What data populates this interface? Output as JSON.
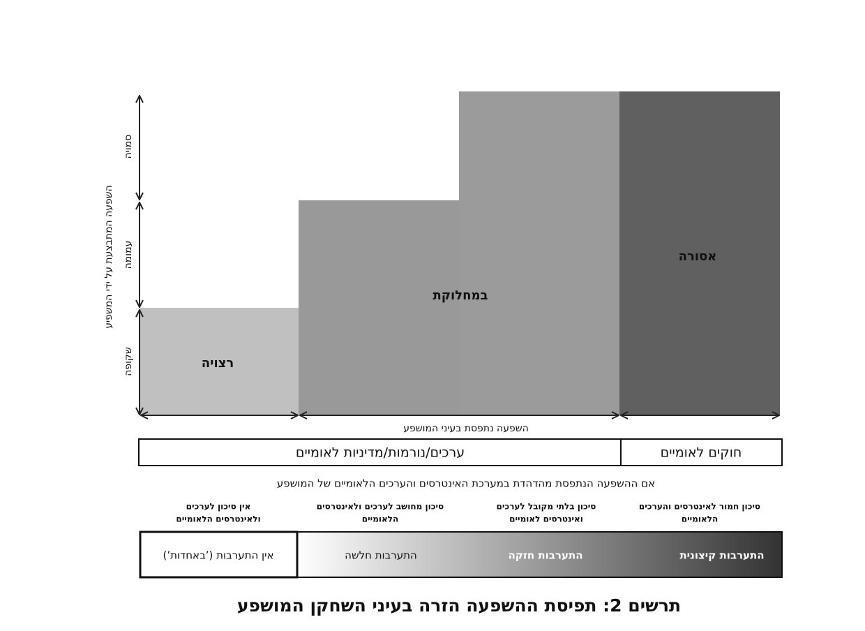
{
  "y_axis": {
    "title": "השפעה המתבצעת על ידי המשפיע",
    "levels": [
      "שקופה",
      "עמומה",
      "סמויה"
    ]
  },
  "blocks": [
    "רצויה",
    "במחלוקת",
    "אסורה"
  ],
  "x_axis": {
    "label": "השפעה נתפסת בעיני המושפע"
  },
  "categories": [
    "ערכים/נורמות/מדיניות לאומיים",
    "חוקים לאומיים"
  ],
  "condition": "אם ההשפעה הנתפסת מהדהדת במערכת האינטרסים והערכים הלאומיים של המושפע",
  "risks": [
    {
      "lines": [
        "סיכון חמור לאינטרסים והערכים",
        "הלאומיים"
      ]
    },
    {
      "lines": [
        "סיכון בלתי מקובל לערכים",
        "ואינטרסים לאומיים"
      ]
    },
    {
      "lines": [
        "סיכון מחושב לערכים ולאינטרסים",
        "הלאומיים"
      ]
    },
    {
      "lines": [
        "אין סיכון לערכים",
        "ולאינטרסים הלאומיים"
      ]
    }
  ],
  "interventions": [
    "התערבות קיצונית",
    "התערבות חזקה",
    "התערבות חלשה",
    "אין התערבות (’באחדות’)"
  ],
  "caption": "תרשים 2: תפיסת ההשפעה הזרה בעיני השחקן המושפע"
}
